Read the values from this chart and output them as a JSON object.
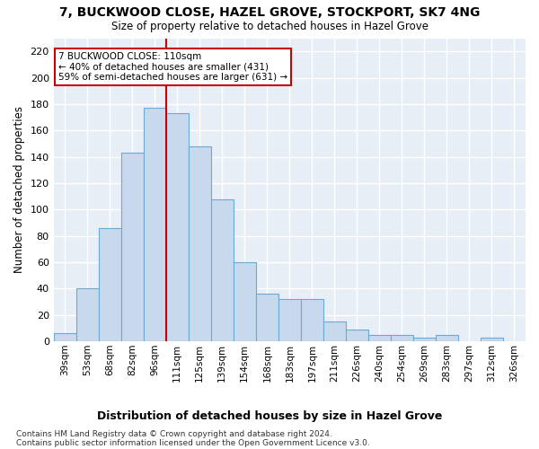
{
  "title": "7, BUCKWOOD CLOSE, HAZEL GROVE, STOCKPORT, SK7 4NG",
  "subtitle": "Size of property relative to detached houses in Hazel Grove",
  "xlabel": "Distribution of detached houses by size in Hazel Grove",
  "ylabel": "Number of detached properties",
  "footnote1": "Contains HM Land Registry data © Crown copyright and database right 2024.",
  "footnote2": "Contains public sector information licensed under the Open Government Licence v3.0.",
  "categories": [
    "39sqm",
    "53sqm",
    "68sqm",
    "82sqm",
    "96sqm",
    "111sqm",
    "125sqm",
    "139sqm",
    "154sqm",
    "168sqm",
    "183sqm",
    "197sqm",
    "211sqm",
    "226sqm",
    "240sqm",
    "254sqm",
    "269sqm",
    "283sqm",
    "297sqm",
    "312sqm",
    "326sqm"
  ],
  "values": [
    6,
    40,
    86,
    143,
    177,
    173,
    148,
    108,
    60,
    36,
    32,
    32,
    15,
    9,
    5,
    5,
    3,
    5,
    0,
    3,
    0
  ],
  "bar_color": "#c8d9ed",
  "bar_edge_color": "#6aaad4",
  "fig_background_color": "#ffffff",
  "ax_background_color": "#e8eef6",
  "grid_color": "#ffffff",
  "annotation_text": "7 BUCKWOOD CLOSE: 110sqm\n← 40% of detached houses are smaller (431)\n59% of semi-detached houses are larger (631) →",
  "annotation_box_color": "#ffffff",
  "annotation_border_color": "#cc0000",
  "vline_x_index": 5,
  "vline_color": "#cc0000",
  "ylim": [
    0,
    230
  ],
  "yticks": [
    0,
    20,
    40,
    60,
    80,
    100,
    120,
    140,
    160,
    180,
    200,
    220
  ]
}
